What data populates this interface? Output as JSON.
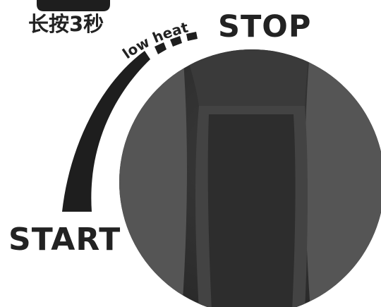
{
  "dial": {
    "hold_instruction": "长按3秒",
    "stop_label": "STOP",
    "low_heat_label": "low heat",
    "start_label": "START",
    "colors": {
      "text": "#222222",
      "arc": "#1e1e1e",
      "knob_dark": "#2f2f2f",
      "knob_mid": "#434343",
      "knob_light": "#5c5c5c"
    }
  }
}
